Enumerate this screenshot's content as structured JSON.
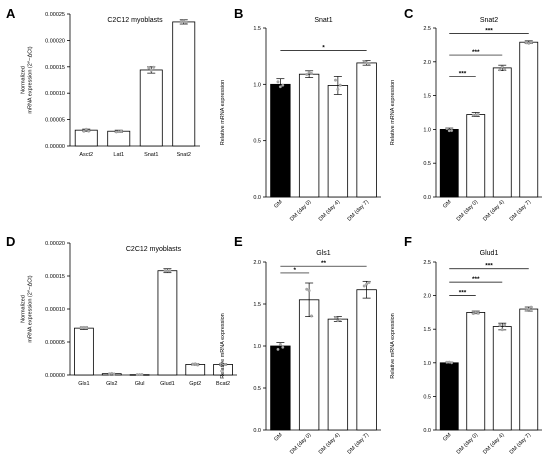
{
  "colors": {
    "ink": "#000000",
    "bar_filled": "#000000",
    "bar_open": "#ffffff",
    "dot": "#aaaaaa"
  },
  "chart_data": [
    {
      "id": "A",
      "panel_label": "A",
      "type": "bar",
      "title": "C2C12 myoblasts",
      "ylabel_lines": [
        "Normalized",
        "mRNA expression (2^−ΔCt)"
      ],
      "categories": [
        "Asct2",
        "Lat1",
        "Snat1",
        "Snat2"
      ],
      "values": [
        3e-05,
        2.8e-05,
        0.000144,
        0.000235
      ],
      "errors": [
        2e-06,
        2e-06,
        6e-06,
        4e-06
      ],
      "ylim": [
        0,
        0.00025
      ],
      "yticks": [
        0,
        5e-05,
        0.0001,
        0.00015,
        0.0002,
        0.00025
      ],
      "ytick_labels": [
        "0.00000",
        "0.00005",
        "0.00010",
        "0.00015",
        "0.00020",
        "0.00025"
      ],
      "x_label_rotation": 0,
      "filled_first": false,
      "significance": []
    },
    {
      "id": "B",
      "panel_label": "B",
      "type": "bar",
      "title": "Snat1",
      "ylabel_lines": [
        "Relative mRNA expression"
      ],
      "categories": [
        "GM",
        "DM (day 0)",
        "DM (day 4)",
        "DM (day 7)"
      ],
      "values": [
        1.0,
        1.09,
        0.99,
        1.19
      ],
      "errors": [
        0.05,
        0.03,
        0.08,
        0.02
      ],
      "ylim": [
        0,
        1.5
      ],
      "yticks": [
        0,
        0.5,
        1.0,
        1.5
      ],
      "ytick_labels": [
        "0.0",
        "0.5",
        "1.0",
        "1.5"
      ],
      "x_label_rotation": -45,
      "filled_first": true,
      "significance": [
        {
          "from": 0,
          "to": 3,
          "y": 1.3,
          "text": "*"
        }
      ]
    },
    {
      "id": "C",
      "panel_label": "C",
      "type": "bar",
      "title": "Snat2",
      "ylabel_lines": [
        "Relative mRNA expression"
      ],
      "categories": [
        "GM",
        "DM (day 0)",
        "DM (day 4)",
        "DM (day 7)"
      ],
      "values": [
        1.0,
        1.22,
        1.91,
        2.29
      ],
      "errors": [
        0.02,
        0.03,
        0.04,
        0.02
      ],
      "ylim": [
        0,
        2.5
      ],
      "yticks": [
        0,
        0.5,
        1.0,
        1.5,
        2.0,
        2.5
      ],
      "ytick_labels": [
        "0.0",
        "0.5",
        "1.0",
        "1.5",
        "2.0",
        "2.5"
      ],
      "x_label_rotation": -45,
      "filled_first": true,
      "significance": [
        {
          "from": 0,
          "to": 1,
          "y": 1.78,
          "text": "***"
        },
        {
          "from": 0,
          "to": 2,
          "y": 2.1,
          "text": "***"
        },
        {
          "from": 0,
          "to": 3,
          "y": 2.42,
          "text": "***"
        }
      ]
    },
    {
      "id": "D",
      "panel_label": "D",
      "type": "bar",
      "title": "C2C12 myoblasts",
      "ylabel_lines": [
        "Normalized",
        "mRNA expression (2^−ΔCt)"
      ],
      "categories": [
        "Gls1",
        "Gls2",
        "Glul",
        "Glud1",
        "Gpt2",
        "Bcat2"
      ],
      "values": [
        7.1e-05,
        2e-06,
        5e-07,
        0.000158,
        1.6e-05,
        1.6e-05
      ],
      "errors": [
        2e-06,
        5e-07,
        2e-07,
        3e-06,
        1e-06,
        1e-06
      ],
      "ylim": [
        0,
        0.0002
      ],
      "yticks": [
        0,
        5e-05,
        0.0001,
        0.00015,
        0.0002
      ],
      "ytick_labels": [
        "0.00000",
        "0.00005",
        "0.00010",
        "0.00015",
        "0.00020"
      ],
      "x_label_rotation": 0,
      "filled_first": false,
      "significance": []
    },
    {
      "id": "E",
      "panel_label": "E",
      "type": "bar",
      "title": "Gls1",
      "ylabel_lines": [
        "Relative mRNA expression"
      ],
      "categories": [
        "GM",
        "DM (day 0)",
        "DM (day 4)",
        "DM (day 7)"
      ],
      "values": [
        1.0,
        1.55,
        1.32,
        1.67
      ],
      "errors": [
        0.04,
        0.2,
        0.03,
        0.1
      ],
      "ylim": [
        0,
        2.0
      ],
      "yticks": [
        0,
        0.5,
        1.0,
        1.5,
        2.0
      ],
      "ytick_labels": [
        "0.0",
        "0.5",
        "1.0",
        "1.5",
        "2.0"
      ],
      "x_label_rotation": -45,
      "filled_first": true,
      "significance": [
        {
          "from": 0,
          "to": 1,
          "y": 1.87,
          "text": "*"
        },
        {
          "from": 0,
          "to": 3,
          "y": 1.95,
          "text": "**"
        }
      ]
    },
    {
      "id": "F",
      "panel_label": "F",
      "type": "bar",
      "title": "Glud1",
      "ylabel_lines": [
        "Relative mRNA expression"
      ],
      "categories": [
        "GM",
        "DM (day 0)",
        "DM (day 4)",
        "DM (day 7)"
      ],
      "values": [
        1.0,
        1.75,
        1.54,
        1.8
      ],
      "errors": [
        0.01,
        0.02,
        0.05,
        0.03
      ],
      "ylim": [
        0,
        2.5
      ],
      "yticks": [
        0,
        0.5,
        1.0,
        1.5,
        2.0,
        2.5
      ],
      "ytick_labels": [
        "0.0",
        "0.5",
        "1.0",
        "1.5",
        "2.0",
        "2.5"
      ],
      "x_label_rotation": -45,
      "filled_first": true,
      "significance": [
        {
          "from": 0,
          "to": 1,
          "y": 2.0,
          "text": "***"
        },
        {
          "from": 0,
          "to": 2,
          "y": 2.2,
          "text": "***"
        },
        {
          "from": 0,
          "to": 3,
          "y": 2.4,
          "text": "***"
        }
      ]
    }
  ]
}
